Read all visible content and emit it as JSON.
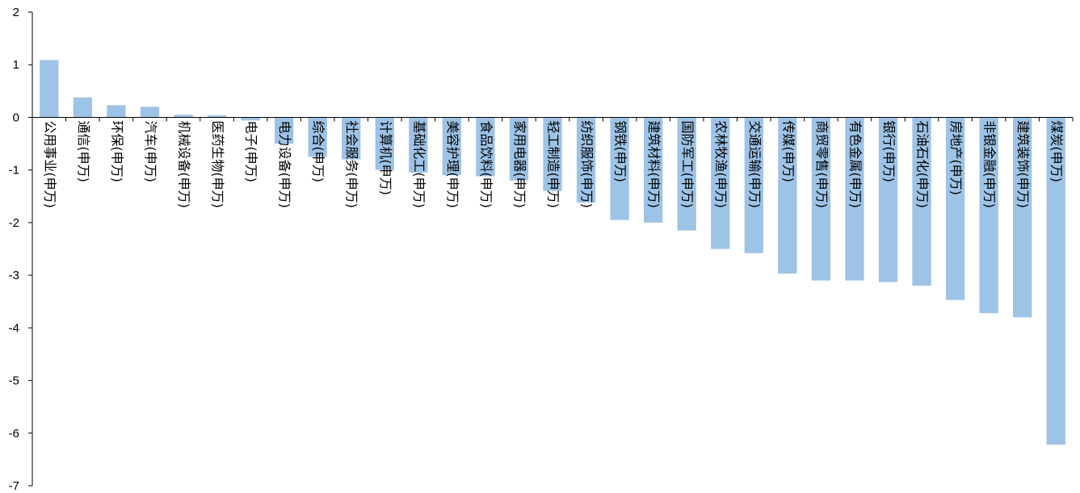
{
  "chart_data": {
    "type": "bar",
    "categories": [
      "公用事业(申万)",
      "通信(申万)",
      "环保(申万)",
      "汽车(申万)",
      "机械设备(申万)",
      "医药生物(申万)",
      "电子(申万)",
      "电力设备(申万)",
      "综合(申万)",
      "社会服务(申万)",
      "计算机(申万)",
      "基础化工(申万)",
      "美容护理(申万)",
      "食品饮料(申万)",
      "家用电器(申万)",
      "轻工制造(申万)",
      "纺织服饰(申万)",
      "钢铁(申万)",
      "建筑材料(申万)",
      "国防军工(申万)",
      "农林牧渔(申万)",
      "交通运输(申万)",
      "传媒(申万)",
      "商贸零售(申万)",
      "有色金属(申万)",
      "银行(申万)",
      "石油石化(申万)",
      "房地产(申万)",
      "非银金融(申万)",
      "建筑装饰(申万)",
      "煤炭(申万)"
    ],
    "values": [
      1.09,
      0.38,
      0.23,
      0.2,
      0.05,
      0.04,
      -0.06,
      -0.5,
      -0.75,
      -0.8,
      -1.0,
      -1.05,
      -1.1,
      -1.12,
      -1.2,
      -1.4,
      -1.62,
      -1.95,
      -2.0,
      -2.15,
      -2.5,
      -2.58,
      -2.97,
      -3.1,
      -3.1,
      -3.13,
      -3.2,
      -3.47,
      -3.72,
      -3.8,
      -6.22
    ],
    "yticks": [
      "2",
      "1",
      "0",
      "-1",
      "-2",
      "-3",
      "-4",
      "-5",
      "-6",
      "-7"
    ],
    "ylim": [
      -7,
      2
    ],
    "bar_color": "#9DC3E6",
    "axis_color": "#000000",
    "grid": false,
    "legend": "none",
    "title": "",
    "xlabel": "",
    "ylabel": ""
  }
}
